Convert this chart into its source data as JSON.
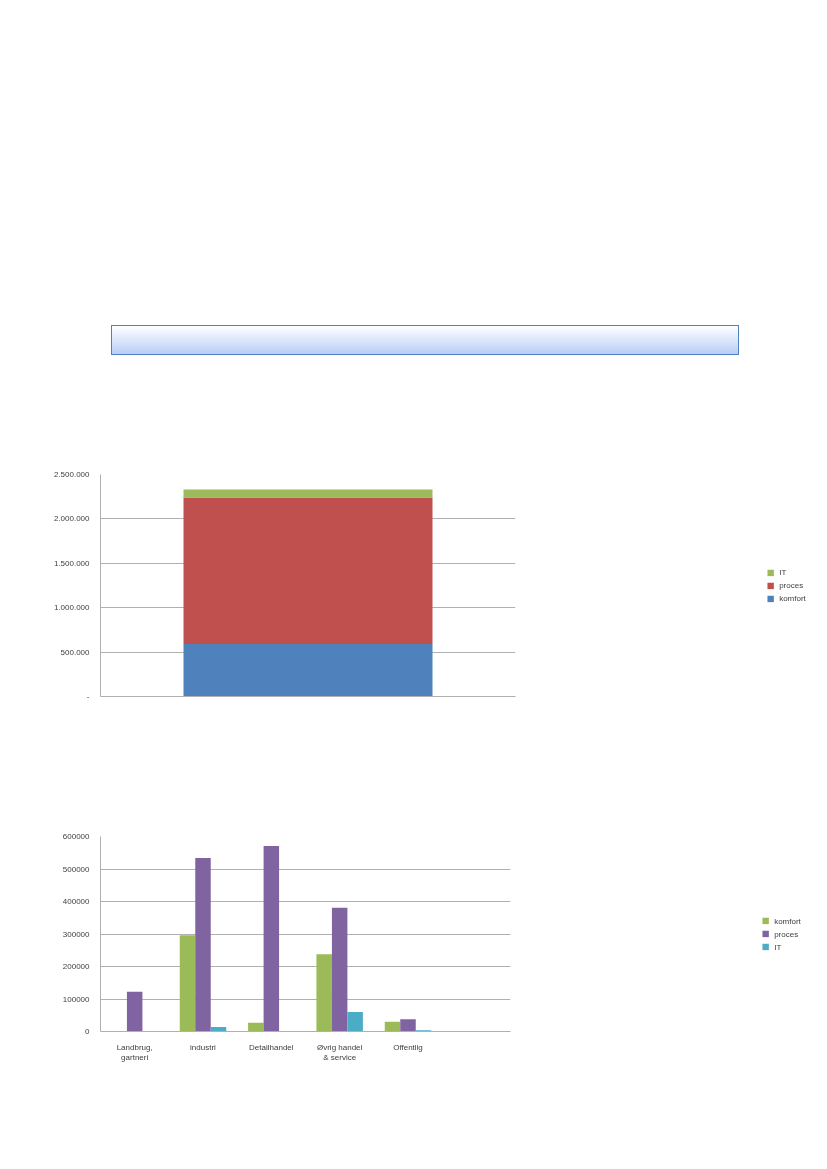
{
  "chart_data": [
    {
      "type": "bar",
      "stacked": true,
      "categories": [
        null
      ],
      "series": [
        {
          "name": "komfort",
          "color": "#4f81bd",
          "values": [
            590000
          ]
        },
        {
          "name": "proces",
          "color": "#c0504d",
          "values": [
            1650000
          ]
        },
        {
          "name": "IT",
          "color": "#9bbb59",
          "values": [
            90000
          ]
        }
      ],
      "ylim": [
        0,
        2500000
      ],
      "yticks": [
        {
          "value": 0,
          "label": "-"
        },
        {
          "value": 500000,
          "label": "500.000"
        },
        {
          "value": 1000000,
          "label": "1.000.000"
        },
        {
          "value": 1500000,
          "label": "1.500.000"
        },
        {
          "value": 2000000,
          "label": "2.000.000"
        },
        {
          "value": 2500000,
          "label": "2.500.000"
        }
      ],
      "grid": "y",
      "legend": "right"
    },
    {
      "type": "bar",
      "categories": [
        "Landbrug, gartneri",
        "industri",
        "Detailhandel",
        "Øvrig handel & service",
        "Offentlig",
        null
      ],
      "series": [
        {
          "name": "komfort",
          "color": "#9bbb59",
          "values": [
            0,
            296000,
            27000,
            238000,
            30000,
            null
          ]
        },
        {
          "name": "proces",
          "color": "#8064a2",
          "values": [
            122000,
            534000,
            571000,
            381000,
            38000,
            null
          ]
        },
        {
          "name": "IT",
          "color": "#4bacc6",
          "values": [
            0,
            14000,
            0,
            60000,
            4000,
            null
          ]
        }
      ],
      "ylim": [
        0,
        600000
      ],
      "yticks": [
        0,
        100000,
        200000,
        300000,
        400000,
        500000,
        600000
      ],
      "grid": "y",
      "legend": "right"
    }
  ]
}
